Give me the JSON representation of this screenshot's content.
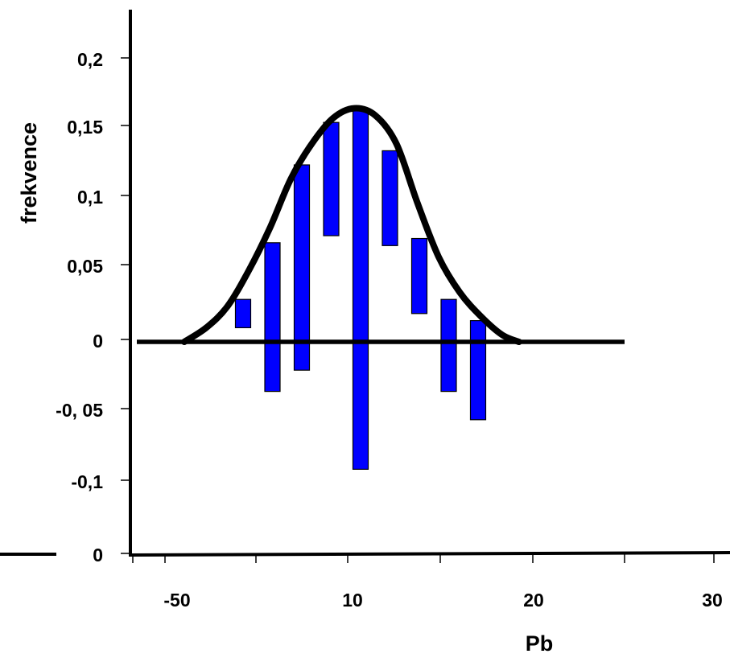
{
  "chart_data": {
    "type": "bar",
    "xlabel": "Pb",
    "ylabel": "frekvence",
    "y_tick_labels": [
      "0,2",
      "0,15",
      "0,1",
      "0,05",
      "0",
      "-0, 05",
      "-0,1",
      "0"
    ],
    "x_tick_labels": [
      "-50",
      "10",
      "20",
      "30"
    ],
    "ylim": [
      -0.15,
      0.2
    ],
    "bars": [
      {
        "top": 0.03,
        "bottom": 0.01
      },
      {
        "top": 0.07,
        "bottom": -0.035
      },
      {
        "top": 0.125,
        "bottom": -0.02
      },
      {
        "top": 0.155,
        "bottom": 0.075
      },
      {
        "top": 0.165,
        "bottom": -0.09
      },
      {
        "top": 0.135,
        "bottom": 0.068
      },
      {
        "top": 0.073,
        "bottom": 0.02
      },
      {
        "top": 0.03,
        "bottom": -0.035
      },
      {
        "top": 0.015,
        "bottom": -0.055
      }
    ],
    "curve": [
      [
        -0.02,
        0.0
      ],
      [
        0.5,
        0.01
      ],
      [
        1.0,
        0.025
      ],
      [
        1.5,
        0.05
      ],
      [
        2.0,
        0.08
      ],
      [
        2.5,
        0.115
      ],
      [
        3.0,
        0.14
      ],
      [
        3.5,
        0.158
      ],
      [
        4.0,
        0.165
      ],
      [
        4.5,
        0.16
      ],
      [
        5.0,
        0.14
      ],
      [
        5.5,
        0.098
      ],
      [
        6.0,
        0.06
      ],
      [
        6.5,
        0.035
      ],
      [
        7.0,
        0.018
      ],
      [
        7.5,
        0.005
      ],
      [
        7.9,
        0.0
      ]
    ],
    "colors": {
      "bar_fill": "#0000ff",
      "bar_edge": "#000000",
      "curve": "#000000",
      "axis": "#000000"
    }
  }
}
